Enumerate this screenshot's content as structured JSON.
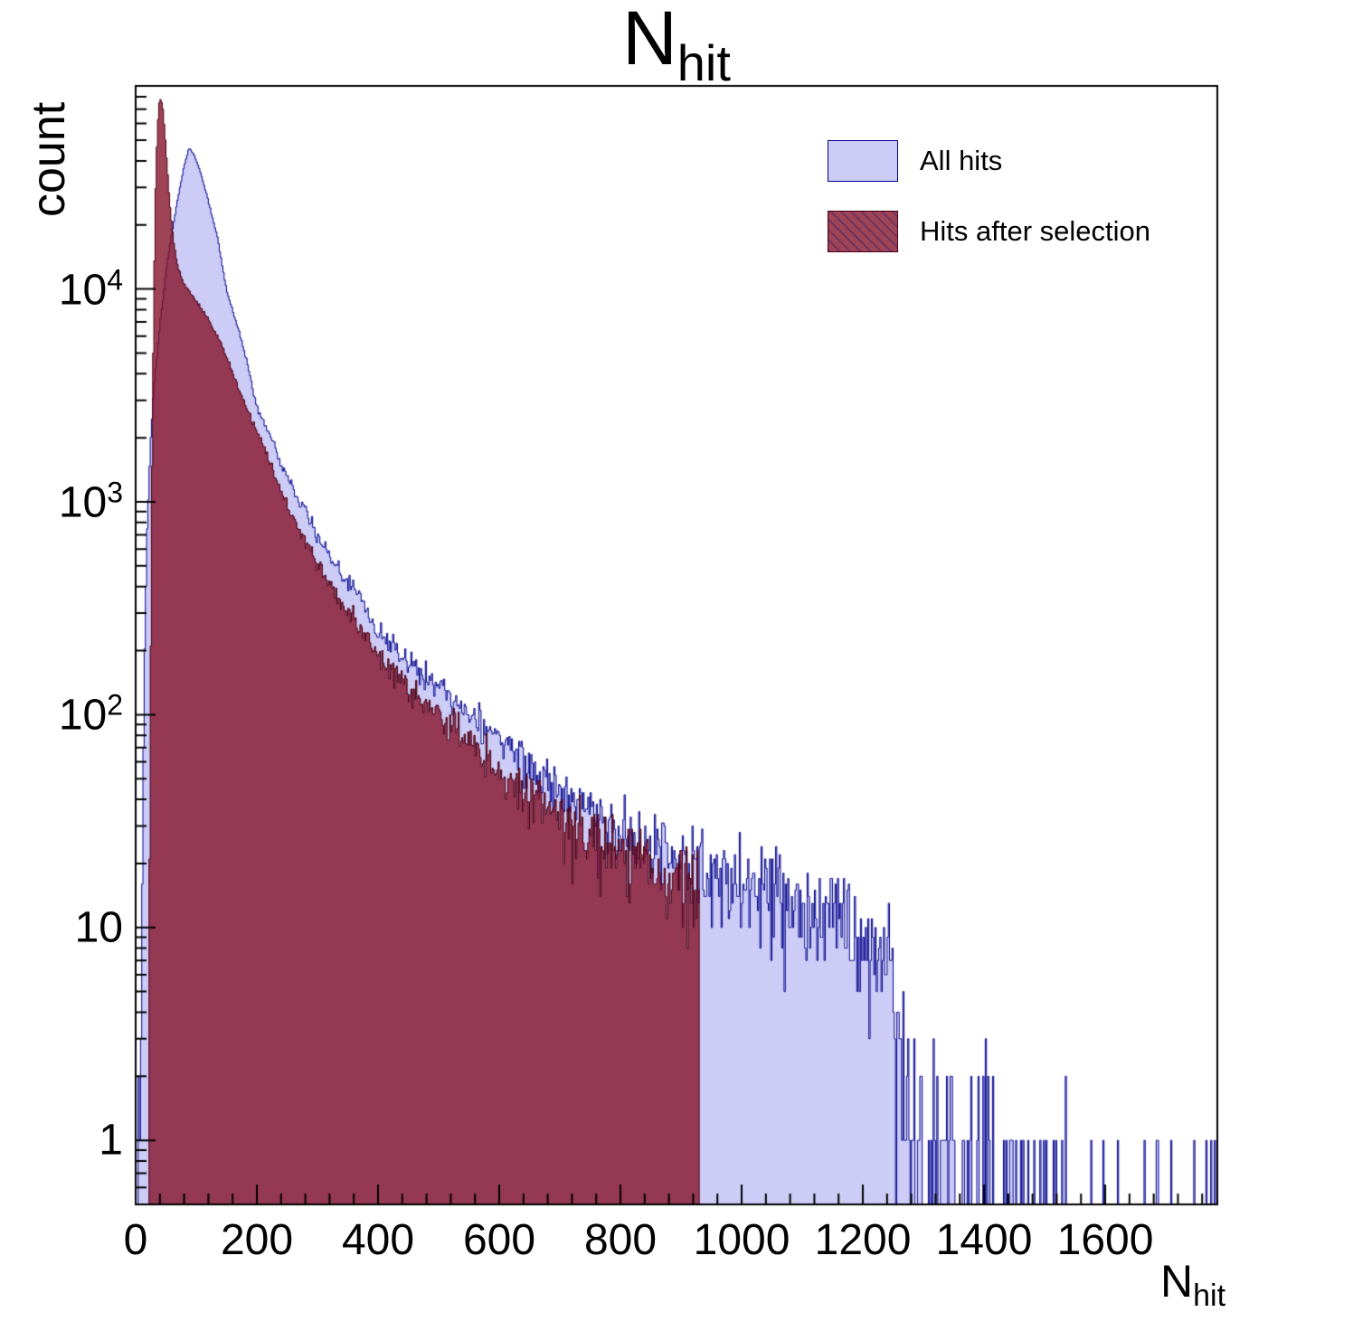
{
  "display": {
    "title_main": "N",
    "title_sub": "hit",
    "xlabel_main": "N",
    "xlabel_sub": "hit"
  },
  "chart_data": {
    "type": "histogram",
    "title": "N_hit",
    "xlabel": "N_hit",
    "ylabel": "count",
    "y_scale": "log",
    "x_range": [
      0,
      1785
    ],
    "y_range": [
      0.5,
      90000
    ],
    "bin_width": 2,
    "x_ticks": [
      0,
      200,
      400,
      600,
      800,
      1000,
      1200,
      1400,
      1600
    ],
    "x_minor_tick_step": 40,
    "y_ticks": [
      {
        "value": 1,
        "base": "1",
        "exp": ""
      },
      {
        "value": 10,
        "base": "10",
        "exp": ""
      },
      {
        "value": 100,
        "base": "10",
        "exp": "2"
      },
      {
        "value": 1000,
        "base": "10",
        "exp": "3"
      },
      {
        "value": 10000,
        "base": "10",
        "exp": "4"
      }
    ],
    "legend_position": "top-right",
    "grid": false,
    "series": [
      {
        "name": "All hits",
        "fill": "#ccccf7",
        "stroke": "#00008c",
        "legend_hatch": false,
        "anchors": [
          [
            3,
            0.4
          ],
          [
            5,
            3.5
          ],
          [
            7,
            1.2
          ],
          [
            10,
            6
          ],
          [
            13,
            60
          ],
          [
            16,
            300
          ],
          [
            20,
            900
          ],
          [
            25,
            2000
          ],
          [
            30,
            3400
          ],
          [
            40,
            6800
          ],
          [
            50,
            12000
          ],
          [
            60,
            18500
          ],
          [
            70,
            27000
          ],
          [
            80,
            38000
          ],
          [
            88,
            46000
          ],
          [
            96,
            43000
          ],
          [
            105,
            37000
          ],
          [
            115,
            29500
          ],
          [
            125,
            22500
          ],
          [
            135,
            17500
          ],
          [
            142,
            13500
          ],
          [
            150,
            9800
          ],
          [
            165,
            7200
          ],
          [
            180,
            5000
          ],
          [
            200,
            2800
          ],
          [
            220,
            2100
          ],
          [
            240,
            1500
          ],
          [
            260,
            1150
          ],
          [
            280,
            900
          ],
          [
            300,
            700
          ],
          [
            325,
            540
          ],
          [
            350,
            430
          ],
          [
            375,
            330
          ],
          [
            400,
            255
          ],
          [
            430,
            205
          ],
          [
            460,
            170
          ],
          [
            490,
            142
          ],
          [
            520,
            119
          ],
          [
            550,
            100
          ],
          [
            580,
            84
          ],
          [
            610,
            71
          ],
          [
            640,
            60
          ],
          [
            670,
            52
          ],
          [
            700,
            44
          ],
          [
            730,
            38
          ],
          [
            760,
            33
          ],
          [
            790,
            29
          ],
          [
            820,
            26
          ],
          [
            850,
            24
          ],
          [
            880,
            22
          ],
          [
            910,
            20
          ],
          [
            940,
            18
          ],
          [
            970,
            16.5
          ],
          [
            1000,
            15.5
          ],
          [
            1030,
            14.5
          ],
          [
            1060,
            13.5
          ],
          [
            1090,
            12.5
          ],
          [
            1120,
            12
          ],
          [
            1150,
            11
          ],
          [
            1180,
            10
          ],
          [
            1210,
            9
          ],
          [
            1235,
            7.5
          ],
          [
            1255,
            5.5
          ],
          [
            1268,
            3
          ],
          [
            1280,
            1.4
          ],
          [
            1300,
            1.0
          ],
          [
            1330,
            0.75
          ],
          [
            1360,
            0.55
          ],
          [
            1400,
            0.4
          ],
          [
            1440,
            0.3
          ],
          [
            1490,
            0.22
          ],
          [
            1560,
            0.16
          ],
          [
            1640,
            0.12
          ],
          [
            1720,
            0.1
          ],
          [
            1785,
            0.08
          ]
        ]
      },
      {
        "name": "Hits after selection",
        "fill": "rgba(132,14,38,0.78)",
        "stroke": "#4a0014",
        "legend_hatch": true,
        "anchors": [
          [
            21,
            0.8
          ],
          [
            24,
            80
          ],
          [
            27,
            1500
          ],
          [
            30,
            9000
          ],
          [
            33,
            30000
          ],
          [
            36,
            58000
          ],
          [
            39,
            75000
          ],
          [
            42,
            78000
          ],
          [
            45,
            70000
          ],
          [
            48,
            55000
          ],
          [
            52,
            38000
          ],
          [
            56,
            26000
          ],
          [
            60,
            19500
          ],
          [
            65,
            15000
          ],
          [
            70,
            12500
          ],
          [
            78,
            10800
          ],
          [
            88,
            9800
          ],
          [
            100,
            8800
          ],
          [
            112,
            7800
          ],
          [
            125,
            6800
          ],
          [
            140,
            5600
          ],
          [
            155,
            4400
          ],
          [
            170,
            3450
          ],
          [
            185,
            2700
          ],
          [
            200,
            2150
          ],
          [
            220,
            1600
          ],
          [
            240,
            1100
          ],
          [
            260,
            840
          ],
          [
            280,
            650
          ],
          [
            300,
            510
          ],
          [
            325,
            400
          ],
          [
            350,
            310
          ],
          [
            375,
            240
          ],
          [
            400,
            185
          ],
          [
            430,
            150
          ],
          [
            460,
            124
          ],
          [
            490,
            103
          ],
          [
            520,
            87
          ],
          [
            550,
            74
          ],
          [
            580,
            63
          ],
          [
            610,
            54
          ],
          [
            640,
            46
          ],
          [
            670,
            40
          ],
          [
            700,
            34.5
          ],
          [
            730,
            30
          ],
          [
            760,
            26
          ],
          [
            790,
            23
          ],
          [
            820,
            20.5
          ],
          [
            850,
            18.5
          ],
          [
            880,
            17
          ],
          [
            905,
            16
          ],
          [
            930,
            15
          ]
        ]
      }
    ]
  }
}
